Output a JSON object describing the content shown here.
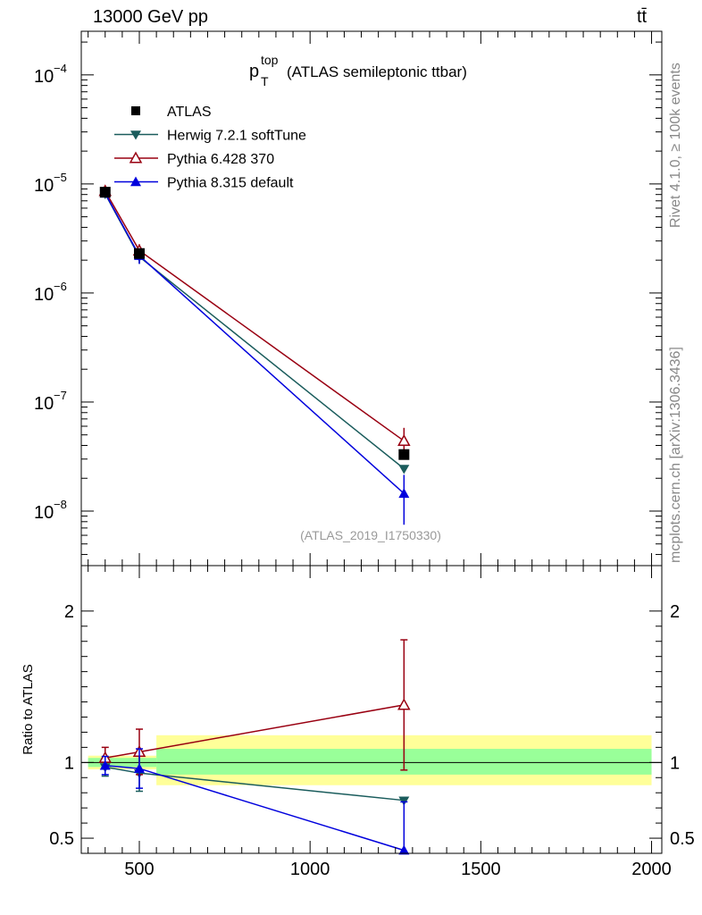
{
  "header": {
    "left": "13000 GeV pp",
    "right": "tt̄"
  },
  "side_labels": {
    "rivet": "Rivet 4.1.0, ≥ 100k events",
    "mcplots": "mcplots.cern.ch [arXiv:1306.3436]"
  },
  "chart_data": {
    "type": "line",
    "title_main": "p",
    "title_sup": "top",
    "title_sub": "T",
    "title_rest": "(ATLAS semileptonic ttbar)",
    "watermark": "(ATLAS_2019_I1750330)",
    "xlim": [
      330,
      2030
    ],
    "x_ticks": [
      500,
      1000,
      1500,
      2000
    ],
    "x_tick_labels": [
      "500",
      "1000",
      "1500",
      "2000"
    ],
    "main": {
      "yscale": "log",
      "ylim_log10": [
        -8.5,
        -3.6
      ],
      "y_ticks_log10": [
        -8,
        -7,
        -6,
        -5,
        -4
      ],
      "y_tick_labels": [
        "10",
        "10",
        "10",
        "10",
        "10"
      ],
      "y_tick_exps": [
        "−8",
        "−7",
        "−6",
        "−5",
        "−4"
      ]
    },
    "ratio": {
      "ylabel": "Ratio to ATLAS",
      "ylim": [
        0.4,
        2.3
      ],
      "y_ticks": [
        0.5,
        1,
        2
      ],
      "y_tick_labels": [
        "0.5",
        "1",
        "2"
      ],
      "bands": {
        "inner_color": "#99ff99",
        "outer_color": "#ffff99",
        "bins": [
          {
            "x0": 350,
            "x1": 550,
            "inner": [
              0.97,
              1.03
            ],
            "outer": [
              0.955,
              1.045
            ]
          },
          {
            "x0": 550,
            "x1": 2000,
            "inner": [
              0.92,
              1.09
            ],
            "outer": [
              0.85,
              1.18
            ]
          }
        ]
      }
    },
    "series": [
      {
        "name": "ATLAS",
        "color": "#000000",
        "marker": "square",
        "x": [
          400,
          500,
          1275
        ],
        "y": [
          8.4e-06,
          2.3e-06,
          3.3e-08
        ],
        "yerr_lo": [
          3e-07,
          1e-07,
          3e-09
        ],
        "yerr_hi": [
          3e-07,
          1e-07,
          3e-09
        ],
        "ratio": [
          1.0,
          1.0,
          1.0
        ],
        "rerr": [
          0,
          0,
          0
        ]
      },
      {
        "name": "Herwig 7.2.1 softTune",
        "color": "#1a5c5c",
        "marker": "triangle-down",
        "x": [
          400,
          500,
          1275
        ],
        "y": [
          8.1e-06,
          2.15e-06,
          2.45e-08
        ],
        "yerr_lo": [
          4e-07,
          3e-07,
          0.0
        ],
        "yerr_hi": [
          4e-07,
          3e-07,
          0.0
        ],
        "ratio": [
          0.97,
          0.93,
          0.75
        ],
        "rerr": [
          0.06,
          0.12,
          0.0
        ]
      },
      {
        "name": "Pythia 6.428 370",
        "color": "#990011",
        "marker": "triangle-up-open",
        "x": [
          400,
          500,
          1275
        ],
        "y": [
          8.6e-06,
          2.45e-06,
          4.4e-08
        ],
        "yerr_lo": [
          4e-07,
          3.5e-07,
          1.4e-08
        ],
        "yerr_hi": [
          4e-07,
          3.5e-07,
          1.4e-08
        ],
        "ratio": [
          1.03,
          1.07,
          1.38
        ],
        "rerr": [
          0.07,
          0.15,
          0.43
        ]
      },
      {
        "name": "Pythia 8.315 default",
        "color": "#0000dd",
        "marker": "triangle-up",
        "x": [
          400,
          500,
          1275
        ],
        "y": [
          8.2e-06,
          2.2e-06,
          1.45e-08
        ],
        "yerr_lo": [
          4e-07,
          3.5e-07,
          7e-09
        ],
        "yerr_hi": [
          4e-07,
          3.5e-07,
          7e-09
        ],
        "ratio": [
          0.98,
          0.96,
          0.42
        ],
        "rerr": [
          0.06,
          0.13,
          0.32
        ]
      }
    ]
  }
}
